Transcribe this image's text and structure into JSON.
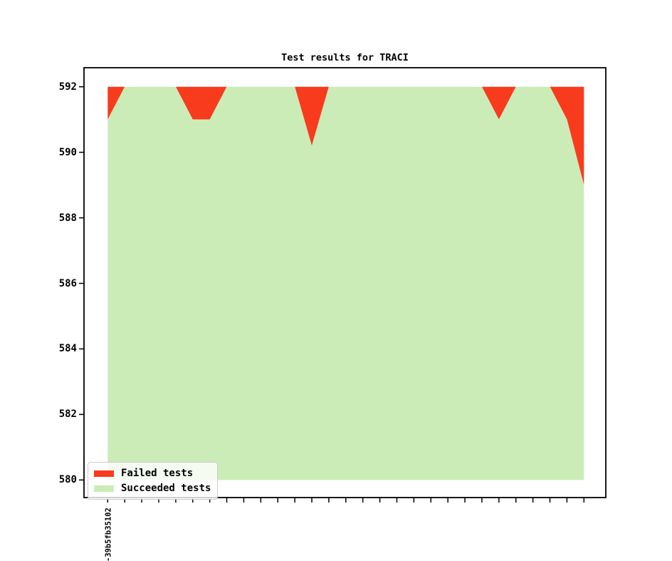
{
  "chart_data": {
    "type": "area",
    "stacked": true,
    "title": "Test results for TRACI",
    "total_tests": 592,
    "ylim": [
      580,
      592
    ],
    "yticks": [
      580,
      582,
      584,
      586,
      588,
      590,
      592
    ],
    "grid": false,
    "legend_position": "lower left",
    "x_tick_labels": [
      "-39b5fb35102",
      "",
      "",
      "",
      "",
      "",
      "",
      "",
      "",
      "",
      "",
      "",
      "",
      "",
      "",
      "",
      "",
      "",
      "",
      "",
      "",
      "",
      "",
      "",
      "",
      "",
      "",
      "",
      ""
    ],
    "series": [
      {
        "name": "Failed tests",
        "color": "#f93b1d",
        "values": [
          1,
          0,
          0,
          0,
          0,
          1,
          1,
          0,
          0,
          0,
          0,
          0,
          1.8,
          0,
          0,
          0,
          0,
          0,
          0,
          0,
          0,
          0,
          0,
          1,
          0,
          0,
          0,
          1,
          3
        ]
      },
      {
        "name": "Succeeded tests",
        "color": "#cbecb7",
        "values": [
          591,
          592,
          592,
          592,
          592,
          591,
          591,
          592,
          592,
          592,
          592,
          592,
          590.2,
          592,
          592,
          592,
          592,
          592,
          592,
          592,
          592,
          592,
          592,
          591,
          592,
          592,
          592,
          591,
          589
        ]
      }
    ],
    "axis_color": "#000000"
  }
}
